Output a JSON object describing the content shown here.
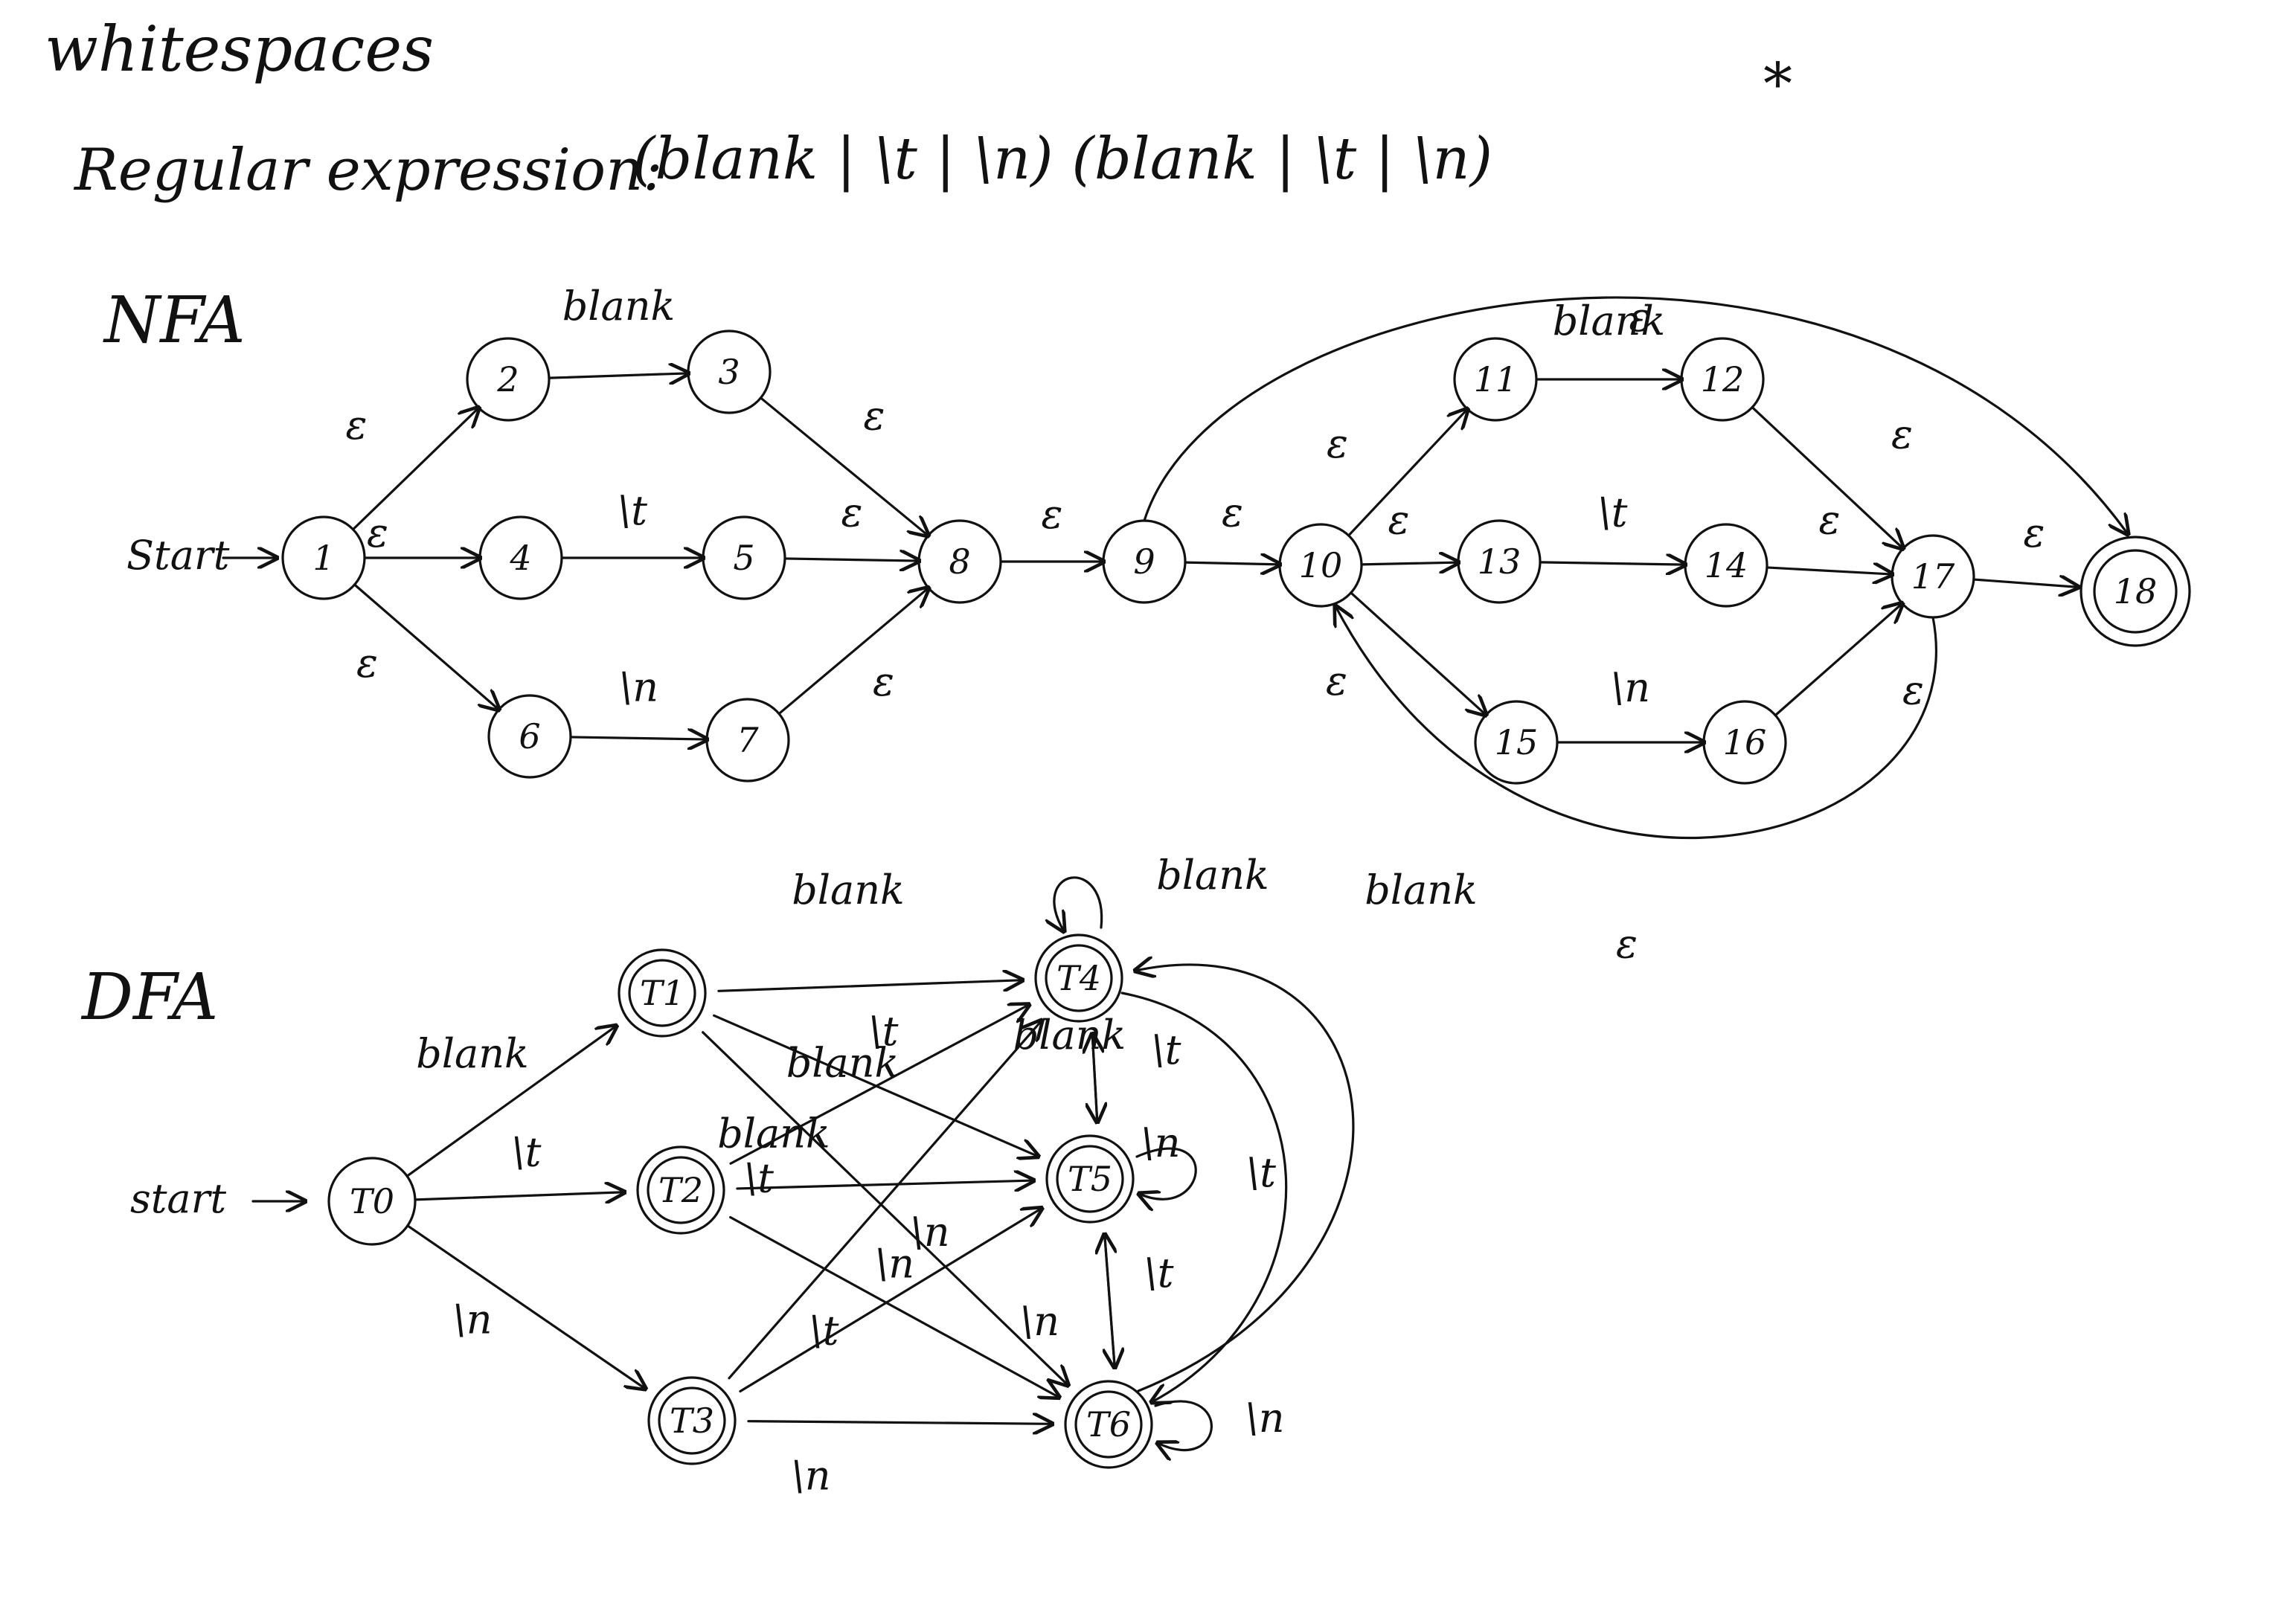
{
  "heading": "whitespaces",
  "regex": {
    "prefix": "Regular expression:",
    "expression": "(blank | \\t | \\n) (blank | \\t | \\n)",
    "star": "*"
  },
  "nfa": {
    "title": "NFA",
    "start_label": "Start",
    "states": [
      "1",
      "2",
      "3",
      "4",
      "5",
      "6",
      "7",
      "8",
      "9",
      "10",
      "11",
      "12",
      "13",
      "14",
      "15",
      "16",
      "17",
      "18"
    ],
    "accepting": [
      "18"
    ],
    "transitions": [
      {
        "from": "1",
        "to": "2",
        "label": "ε"
      },
      {
        "from": "1",
        "to": "4",
        "label": "ε"
      },
      {
        "from": "1",
        "to": "6",
        "label": "ε"
      },
      {
        "from": "2",
        "to": "3",
        "label": "blank"
      },
      {
        "from": "4",
        "to": "5",
        "label": "\\t"
      },
      {
        "from": "6",
        "to": "7",
        "label": "\\n"
      },
      {
        "from": "3",
        "to": "8",
        "label": "ε"
      },
      {
        "from": "5",
        "to": "8",
        "label": "ε"
      },
      {
        "from": "7",
        "to": "8",
        "label": "ε"
      },
      {
        "from": "8",
        "to": "9",
        "label": "ε"
      },
      {
        "from": "9",
        "to": "10",
        "label": "ε"
      },
      {
        "from": "10",
        "to": "11",
        "label": "ε"
      },
      {
        "from": "10",
        "to": "13",
        "label": "ε"
      },
      {
        "from": "10",
        "to": "15",
        "label": "ε"
      },
      {
        "from": "11",
        "to": "12",
        "label": "blank"
      },
      {
        "from": "13",
        "to": "14",
        "label": "\\t"
      },
      {
        "from": "15",
        "to": "16",
        "label": "\\n"
      },
      {
        "from": "12",
        "to": "17",
        "label": "ε"
      },
      {
        "from": "14",
        "to": "17",
        "label": "ε"
      },
      {
        "from": "16",
        "to": "17",
        "label": "ε"
      },
      {
        "from": "17",
        "to": "18",
        "label": "ε"
      },
      {
        "from": "9",
        "to": "18",
        "label": "ε"
      },
      {
        "from": "17",
        "to": "10",
        "label": "ε"
      }
    ]
  },
  "dfa": {
    "title": "DFA",
    "start_label": "start",
    "states": [
      "T0",
      "T1",
      "T2",
      "T3",
      "T4",
      "T5",
      "T6"
    ],
    "accepting": [
      "T1",
      "T2",
      "T3",
      "T4",
      "T5",
      "T6"
    ],
    "transitions": [
      {
        "from": "T0",
        "to": "T1",
        "label": "blank"
      },
      {
        "from": "T0",
        "to": "T2",
        "label": "\\t"
      },
      {
        "from": "T0",
        "to": "T3",
        "label": "\\n"
      },
      {
        "from": "T1",
        "to": "T4",
        "label": "blank"
      },
      {
        "from": "T1",
        "to": "T5",
        "label": "\\t"
      },
      {
        "from": "T1",
        "to": "T6",
        "label": "\\n"
      },
      {
        "from": "T2",
        "to": "T4",
        "label": "blank"
      },
      {
        "from": "T2",
        "to": "T5",
        "label": "\\t"
      },
      {
        "from": "T2",
        "to": "T6",
        "label": "\\n"
      },
      {
        "from": "T3",
        "to": "T4",
        "label": "blank"
      },
      {
        "from": "T3",
        "to": "T5",
        "label": "\\t"
      },
      {
        "from": "T3",
        "to": "T6",
        "label": "\\n"
      },
      {
        "from": "T4",
        "to": "T4",
        "label": "blank"
      },
      {
        "from": "T4",
        "to": "T5",
        "label": "\\t"
      },
      {
        "from": "T4",
        "to": "T6",
        "label": "\\n"
      },
      {
        "from": "T5",
        "to": "T4",
        "label": "blank"
      },
      {
        "from": "T5",
        "to": "T5",
        "label": "\\t"
      },
      {
        "from": "T5",
        "to": "T6",
        "label": "\\n"
      },
      {
        "from": "T6",
        "to": "T4",
        "label": "blank"
      },
      {
        "from": "T6",
        "to": "T5",
        "label": "\\t"
      },
      {
        "from": "T6",
        "to": "T6",
        "label": "\\n"
      }
    ]
  }
}
